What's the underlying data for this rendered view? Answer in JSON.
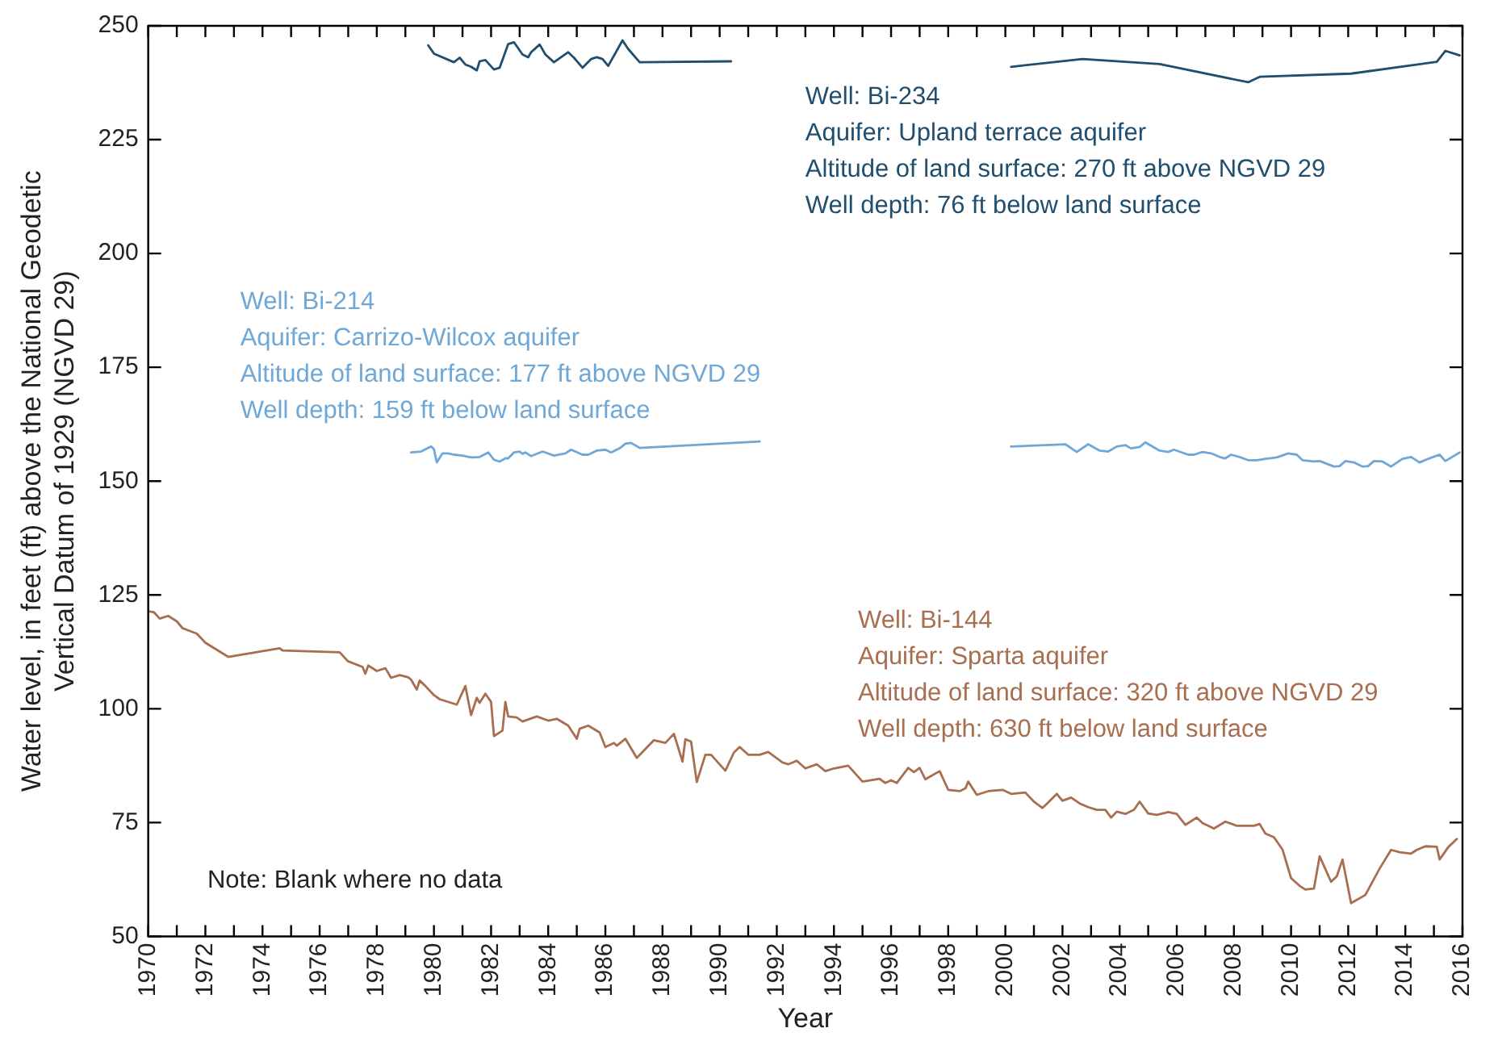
{
  "chart_data": {
    "type": "line",
    "xlabel": "Year",
    "ylabel": "Water level, in feet (ft) above the National Geodetic\nVertical Datum of 1929 (NGVD 29)",
    "xlim": [
      1970,
      2016
    ],
    "ylim": [
      50,
      250
    ],
    "xticks": [
      1970,
      {
        "value": 1971,
        "label": null
      },
      1972,
      {
        "value": 1973,
        "label": null
      },
      1974,
      {
        "value": 1975,
        "label": null
      },
      1976,
      {
        "value": 1977,
        "label": null
      },
      1978,
      {
        "value": 1979,
        "label": null
      },
      1980,
      {
        "value": 1981,
        "label": null
      },
      1982,
      {
        "value": 1983,
        "label": null
      },
      1984,
      {
        "value": 1985,
        "label": null
      },
      1986,
      {
        "value": 1987,
        "label": null
      },
      1988,
      {
        "value": 1989,
        "label": null
      },
      1990,
      {
        "value": 1991,
        "label": null
      },
      1992,
      {
        "value": 1993,
        "label": null
      },
      1994,
      {
        "value": 1995,
        "label": null
      },
      1996,
      {
        "value": 1997,
        "label": null
      },
      1998,
      {
        "value": 1999,
        "label": null
      },
      2000,
      {
        "value": 2001,
        "label": null
      },
      2002,
      {
        "value": 2003,
        "label": null
      },
      2004,
      {
        "value": 2005,
        "label": null
      },
      2006,
      {
        "value": 2007,
        "label": null
      },
      2008,
      {
        "value": 2009,
        "label": null
      },
      2010,
      {
        "value": 2011,
        "label": null
      },
      2012,
      {
        "value": 2013,
        "label": null
      },
      2014,
      {
        "value": 2015,
        "label": null
      },
      2016
    ],
    "yticks": [
      50,
      75,
      100,
      125,
      150,
      175,
      200,
      225,
      250
    ],
    "grid": false,
    "legend": false,
    "marker": "none",
    "line_style": "solid",
    "annotations": [
      "Well: Bi-234\nAquifer: Upland terrace aquifer\nAltitude of land surface: 270 ft above NGVD 29\nWell depth: 76 ft below land surface",
      "Well: Bi-214\nAquifer: Carrizo-Wilcox aquifer\nAltitude of land surface: 177 ft above NGVD 29\nWell depth: 159 ft below land surface",
      "Well: Bi-144\nAquifer: Sparta aquifer\nAltitude of land surface: 320 ft above NGVD 29\nWell depth: 630 ft below land surface",
      "Note: Blank where no data"
    ],
    "series": [
      {
        "color": "#1f4e6e",
        "x": [
          1979.8,
          1980.0,
          1980.7,
          1980.9,
          1981.1,
          1981.3,
          1981.5,
          1981.6,
          1981.8,
          1982.1,
          1982.3,
          1982.6,
          1982.8,
          1983.1,
          1983.3,
          1983.4,
          1983.7,
          1983.9,
          1984.2,
          1984.7,
          1984.9,
          1985.2,
          1985.5,
          1985.7,
          1985.9,
          1986.1,
          1986.6,
          1986.8,
          1987.2,
          1990.4,
          1995.0,
          2000.2,
          2002.7,
          2005.4,
          2008.5,
          2008.9,
          2012.1,
          2015.1,
          2015.4,
          2015.9
        ],
        "values": [
          245.7,
          243.9,
          242,
          243,
          241.5,
          241,
          240.2,
          242.2,
          242.5,
          240.4,
          240.8,
          246,
          246.4,
          243.7,
          243.1,
          244.2,
          245.9,
          243.7,
          242,
          244.2,
          243,
          240.8,
          242.7,
          243.1,
          242.7,
          241.2,
          246.8,
          244.9,
          242,
          242.2,
          null,
          241,
          242.7,
          241.6,
          237.6,
          238.8,
          239.5,
          242.1,
          244.5,
          243.5
        ]
      },
      {
        "color": "#6fa8d6",
        "x": [
          1979.2,
          1979.55,
          1979.9,
          1980.0,
          1980.1,
          1980.3,
          1980.5,
          1980.7,
          1981.0,
          1981.3,
          1981.6,
          1981.9,
          1982.1,
          1982.3,
          1982.5,
          1982.6,
          1982.8,
          1983.0,
          1983.1,
          1983.2,
          1983.4,
          1983.8,
          1984.2,
          1984.6,
          1984.8,
          1985.2,
          1985.4,
          1985.7,
          1986.0,
          1986.2,
          1986.5,
          1986.7,
          1986.9,
          1987.2,
          1991.4,
          1995.0,
          2000.2,
          2002.1,
          2002.5,
          2002.9,
          2003.3,
          2003.6,
          2003.9,
          2004.2,
          2004.4,
          2004.7,
          2004.9,
          2005.4,
          2005.7,
          2005.9,
          2006.4,
          2006.6,
          2006.9,
          2007.2,
          2007.5,
          2007.7,
          2007.9,
          2008.2,
          2008.5,
          2008.8,
          2009.1,
          2009.5,
          2009.9,
          2010.2,
          2010.4,
          2010.8,
          2011.0,
          2011.5,
          2011.7,
          2011.9,
          2012.2,
          2012.5,
          2012.7,
          2012.9,
          2013.2,
          2013.5,
          2013.9,
          2014.2,
          2014.5,
          2014.8,
          2015.2,
          2015.4,
          2015.9
        ],
        "values": [
          156.3,
          156.5,
          157.6,
          157,
          154.1,
          156.1,
          156.1,
          155.8,
          155.6,
          155.2,
          155.3,
          156.3,
          154.7,
          154.3,
          155,
          155,
          156.3,
          156.5,
          156,
          156.3,
          155.5,
          156.5,
          155.6,
          156.1,
          156.9,
          155.8,
          155.8,
          156.7,
          156.9,
          156.3,
          157.2,
          158.2,
          158.4,
          157.3,
          158.7,
          null,
          157.6,
          158.1,
          156.4,
          158.1,
          156.7,
          156.5,
          157.6,
          157.9,
          157.2,
          157.5,
          158.5,
          156.7,
          156.4,
          156.9,
          155.8,
          155.8,
          156.4,
          156.1,
          155.3,
          155,
          155.8,
          155.3,
          154.6,
          154.6,
          154.9,
          155.2,
          156.1,
          155.8,
          154.6,
          154.3,
          154.4,
          153.2,
          153.3,
          154.4,
          154.1,
          153.2,
          153.3,
          154.4,
          154.3,
          153.2,
          154.9,
          155.3,
          154.1,
          154.9,
          155.8,
          154.4,
          156.3
        ]
      },
      {
        "color": "#a86e50",
        "x": [
          1970.0,
          1970.2,
          1970.4,
          1970.7,
          1971.0,
          1971.2,
          1971.7,
          1972.0,
          1972.8,
          1974.6,
          1974.7,
          1976.7,
          1977.0,
          1977.5,
          1977.6,
          1977.7,
          1978.0,
          1978.3,
          1978.5,
          1978.8,
          1979.1,
          1979.2,
          1979.4,
          1979.5,
          1979.7,
          1980.0,
          1980.2,
          1980.8,
          1981.1,
          1981.3,
          1981.5,
          1981.6,
          1981.8,
          1982.0,
          1982.1,
          1982.4,
          1982.5,
          1982.6,
          1982.9,
          1983.1,
          1983.6,
          1984.0,
          1984.3,
          1984.7,
          1985.0,
          1985.1,
          1985.4,
          1985.8,
          1986.0,
          1986.3,
          1986.4,
          1986.7,
          1987.1,
          1987.7,
          1988.1,
          1988.4,
          1988.7,
          1988.8,
          1989.0,
          1989.2,
          1989.5,
          1989.7,
          1990.2,
          1990.5,
          1990.7,
          1991.0,
          1991.4,
          1991.7,
          1992.2,
          1992.4,
          1992.7,
          1993.0,
          1993.4,
          1993.7,
          1994.0,
          1994.5,
          1995.0,
          1995.6,
          1995.8,
          1996.0,
          1996.2,
          1996.6,
          1996.8,
          1997.0,
          1997.2,
          1997.7,
          1998.0,
          1998.4,
          1998.6,
          1998.7,
          1999.0,
          1999.4,
          1999.9,
          2000.2,
          2000.7,
          2001.0,
          2001.3,
          2001.5,
          2001.8,
          2002.0,
          2002.3,
          2002.6,
          2002.9,
          2003.2,
          2003.5,
          2003.7,
          2003.9,
          2004.2,
          2004.5,
          2004.7,
          2005.0,
          2005.3,
          2005.7,
          2006.0,
          2006.3,
          2006.7,
          2006.9,
          2007.3,
          2007.7,
          2008.1,
          2008.7,
          2008.9,
          2009.1,
          2009.4,
          2009.7,
          2010.0,
          2010.3,
          2010.5,
          2010.8,
          2011.0,
          2011.4,
          2011.6,
          2011.8,
          2012.1,
          2012.6,
          2013.1,
          2013.5,
          2013.8,
          2014.2,
          2014.4,
          2014.7,
          2015.1,
          2015.2,
          2015.5,
          2015.8
        ],
        "values": [
          121.4,
          121.2,
          119.8,
          120.4,
          119.2,
          117.7,
          116.5,
          114.5,
          111.4,
          113.3,
          112.8,
          112.4,
          110.4,
          109.2,
          107.7,
          109.5,
          108.3,
          108.9,
          106.8,
          107.4,
          106.9,
          106.4,
          104.2,
          106.2,
          105,
          103,
          102.1,
          100.9,
          105,
          98.6,
          102.4,
          101.3,
          103.3,
          101.5,
          94,
          95.2,
          101.5,
          98.3,
          98.1,
          97.2,
          98.3,
          97.4,
          97.8,
          96.3,
          93.4,
          95.6,
          96.3,
          94.8,
          91.6,
          92.5,
          91.9,
          93.4,
          89.2,
          93.1,
          92.5,
          94.5,
          88.4,
          93.3,
          92.8,
          83.9,
          89.9,
          89.9,
          86.4,
          90.4,
          91.6,
          89.9,
          89.9,
          90.5,
          88.2,
          87.8,
          88.6,
          86.9,
          87.8,
          86.3,
          86.9,
          87.5,
          84,
          84.6,
          83.7,
          84.3,
          83.7,
          87,
          86.1,
          87,
          84.5,
          86.3,
          82.2,
          81.9,
          82.5,
          84,
          81.1,
          81.9,
          82.2,
          81.3,
          81.6,
          79.6,
          78.2,
          79.4,
          81.3,
          79.8,
          80.5,
          79.2,
          78.4,
          77.8,
          77.8,
          76.1,
          77.4,
          76.9,
          77.8,
          79.6,
          77,
          76.7,
          77.3,
          76.9,
          74.5,
          76.1,
          74.9,
          73.7,
          75.2,
          74.3,
          74.3,
          74.7,
          72.6,
          71.8,
          69.1,
          62.8,
          61.1,
          60.3,
          60.5,
          67.6,
          62,
          63.2,
          66.9,
          57.3,
          59.1,
          64.9,
          69,
          68.5,
          68.2,
          69,
          69.8,
          69.7,
          66.9,
          69.6,
          71.4
        ]
      }
    ]
  }
}
